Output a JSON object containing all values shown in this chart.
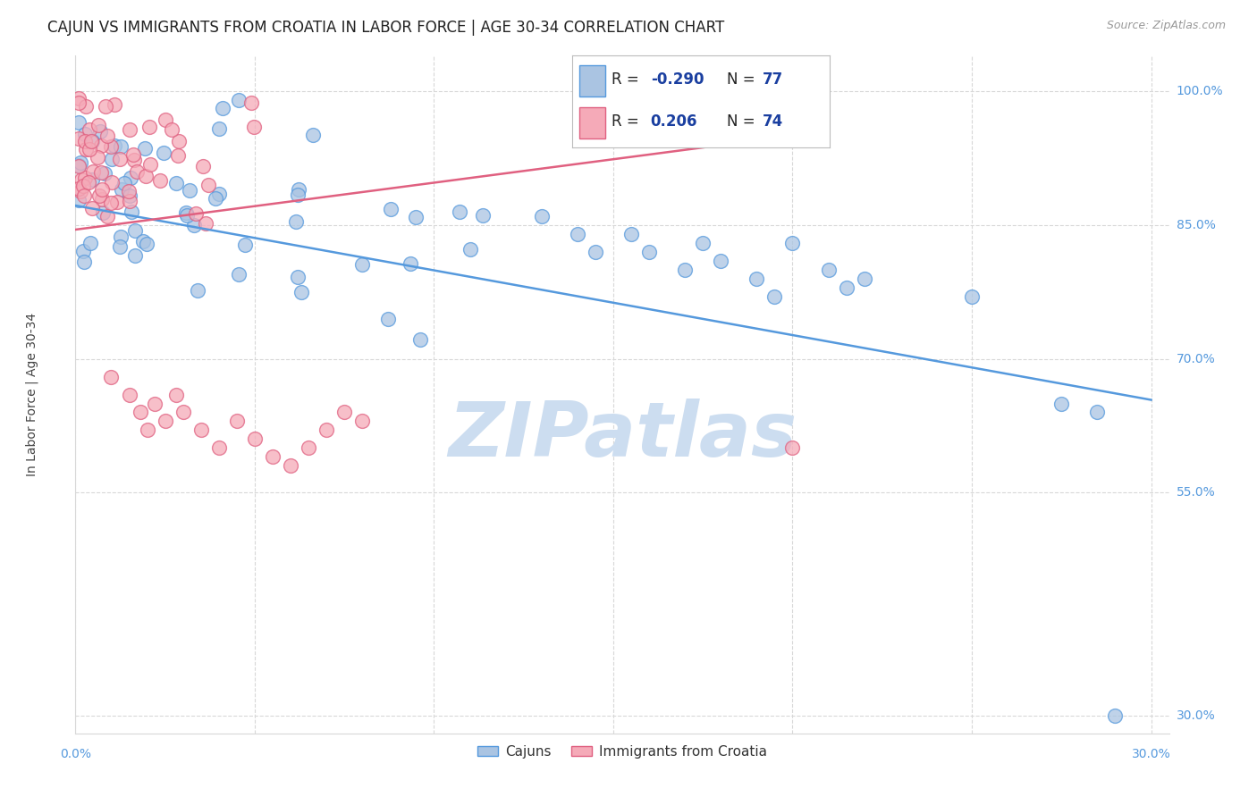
{
  "title": "CAJUN VS IMMIGRANTS FROM CROATIA IN LABOR FORCE | AGE 30-34 CORRELATION CHART",
  "source": "Source: ZipAtlas.com",
  "ylabel": "In Labor Force | Age 30-34",
  "xlim": [
    0.0,
    0.305
  ],
  "ylim": [
    0.28,
    1.04
  ],
  "xticks": [
    0.0,
    0.05,
    0.1,
    0.15,
    0.2,
    0.25,
    0.3
  ],
  "yticks": [
    0.3,
    0.55,
    0.7,
    0.85,
    1.0
  ],
  "yticklabels": [
    "30.0%",
    "55.0%",
    "70.0%",
    "85.0%",
    "100.0%"
  ],
  "cajun_R": -0.29,
  "cajun_N": 77,
  "croatia_R": 0.206,
  "croatia_N": 74,
  "cajun_color": "#aac4e2",
  "croatia_color": "#f5aab8",
  "cajun_line_color": "#5599dd",
  "croatia_line_color": "#e06080",
  "cajun_edge_color": "#5599dd",
  "croatia_edge_color": "#e06080",
  "legend_R_color": "#1a3fa0",
  "legend_N_color": "#1a3fa0",
  "watermark_color": "#ccddf0",
  "background_color": "#ffffff",
  "grid_color": "#d8d8d8",
  "title_fontsize": 12,
  "source_fontsize": 9,
  "axis_label_fontsize": 10,
  "tick_fontsize": 10,
  "legend_fontsize": 12,
  "cajun_trend_x": [
    0.0,
    0.3
  ],
  "cajun_trend_y": [
    0.872,
    0.654
  ],
  "croatia_trend_x": [
    0.0,
    0.19
  ],
  "croatia_trend_y": [
    0.845,
    0.945
  ]
}
